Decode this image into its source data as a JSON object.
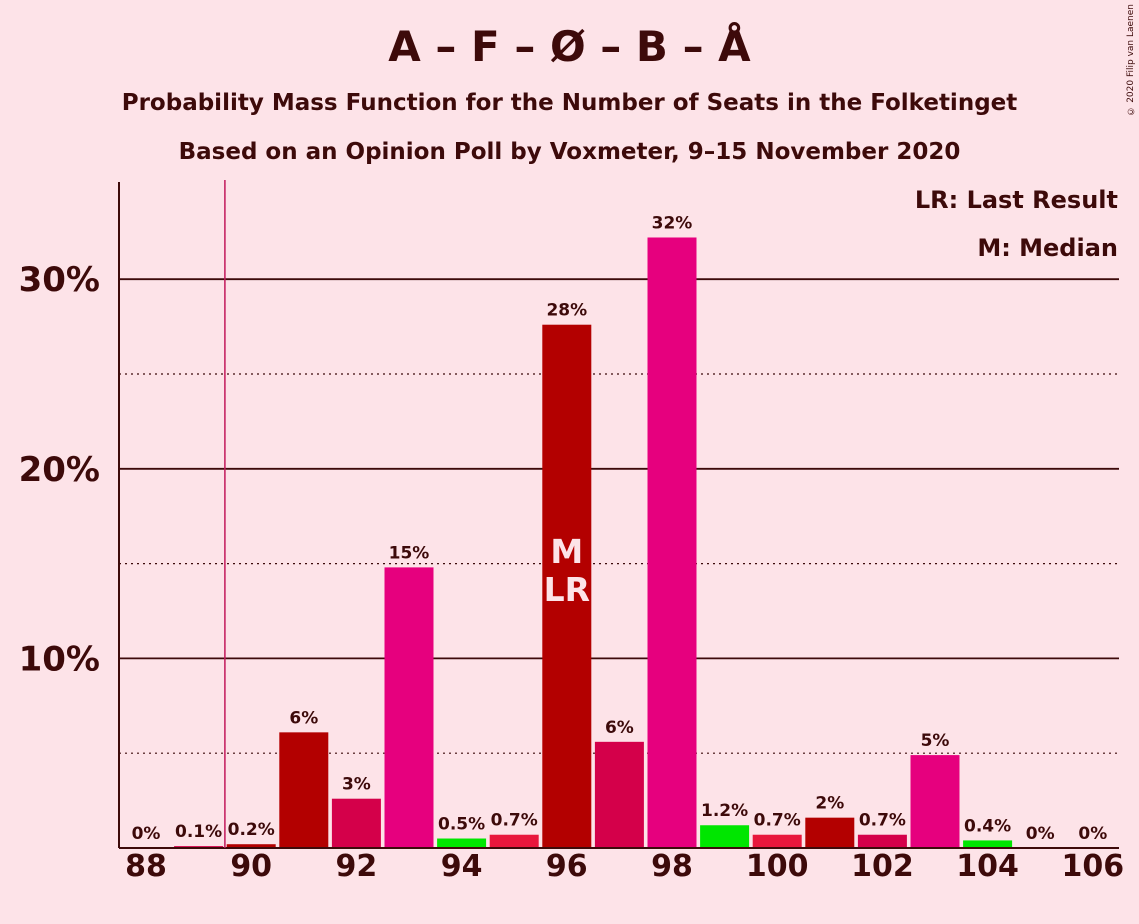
{
  "chart_data": {
    "type": "bar",
    "title": "A – F – Ø – B – Å",
    "subtitle": "Probability Mass Function for the Number of Seats in the Folketinget",
    "subtitle2": "Based on an Opinion Poll by Voxmeter, 9–15 November 2020",
    "copyright": "© 2020 Filip van Laenen",
    "legend": [
      "LR: Last Result",
      "M: Median"
    ],
    "legend_position": "top-right",
    "x": [
      88,
      89,
      90,
      91,
      92,
      93,
      94,
      95,
      96,
      97,
      98,
      99,
      100,
      101,
      102,
      103,
      104,
      105,
      106
    ],
    "values": [
      0,
      0.1,
      0.2,
      6.1,
      2.6,
      14.8,
      0.5,
      0.7,
      27.6,
      5.6,
      32.2,
      1.2,
      0.7,
      1.6,
      0.7,
      4.9,
      0.4,
      0,
      0
    ],
    "data_labels": [
      "0%",
      "0.1%",
      "0.2%",
      "6%",
      "3%",
      "15%",
      "0.5%",
      "0.7%",
      "28%",
      "6%",
      "32%",
      "1.2%",
      "0.7%",
      "2%",
      "0.7%",
      "5%",
      "0.4%",
      "0%",
      "0%"
    ],
    "bar_colors": [
      "#B30000",
      "#D4004A",
      "#B30000",
      "#B30000",
      "#D4004A",
      "#E6007E",
      "#00E600",
      "#E8173C",
      "#B30000",
      "#D4004A",
      "#E6007E",
      "#00E600",
      "#E8173C",
      "#B30000",
      "#D4004A",
      "#E6007E",
      "#00E600",
      "#E8173C",
      "#B30000"
    ],
    "x_ticks": [
      "88",
      "90",
      "92",
      "94",
      "96",
      "98",
      "100",
      "102",
      "104",
      "106"
    ],
    "y_ticks": [
      "10%",
      "20%",
      "30%"
    ],
    "ylim": [
      0,
      35
    ],
    "last_result_seat": 89.5,
    "median_seat": 96,
    "bar_annotation": [
      "M",
      "LR"
    ],
    "grid": "solid at 10% steps, dotted at 5% offsets"
  }
}
